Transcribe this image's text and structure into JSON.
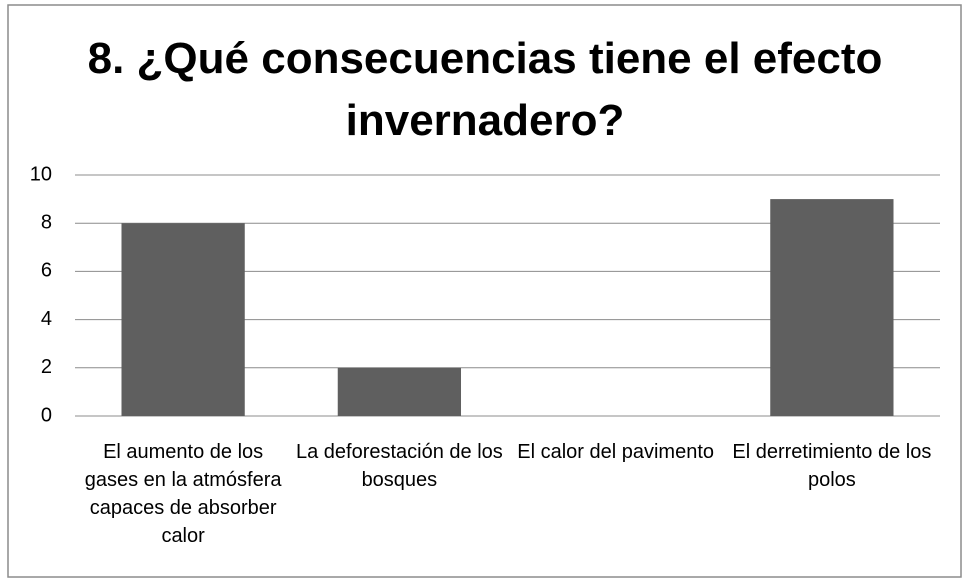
{
  "chart_data": {
    "type": "bar",
    "title": "8. ¿Qué consecuencias tiene el efecto invernadero?",
    "categories": [
      "El aumento de los gases en la atmósfera capaces de absorber calor",
      "La deforestación de los bosques",
      "El calor del pavimento",
      "El derretimiento de los polos"
    ],
    "values": [
      8,
      2,
      0,
      9
    ],
    "color": "#5f5f5f",
    "ylim": [
      0,
      10
    ],
    "yticks": [
      0,
      2,
      4,
      6,
      8,
      10
    ],
    "grid": true
  }
}
